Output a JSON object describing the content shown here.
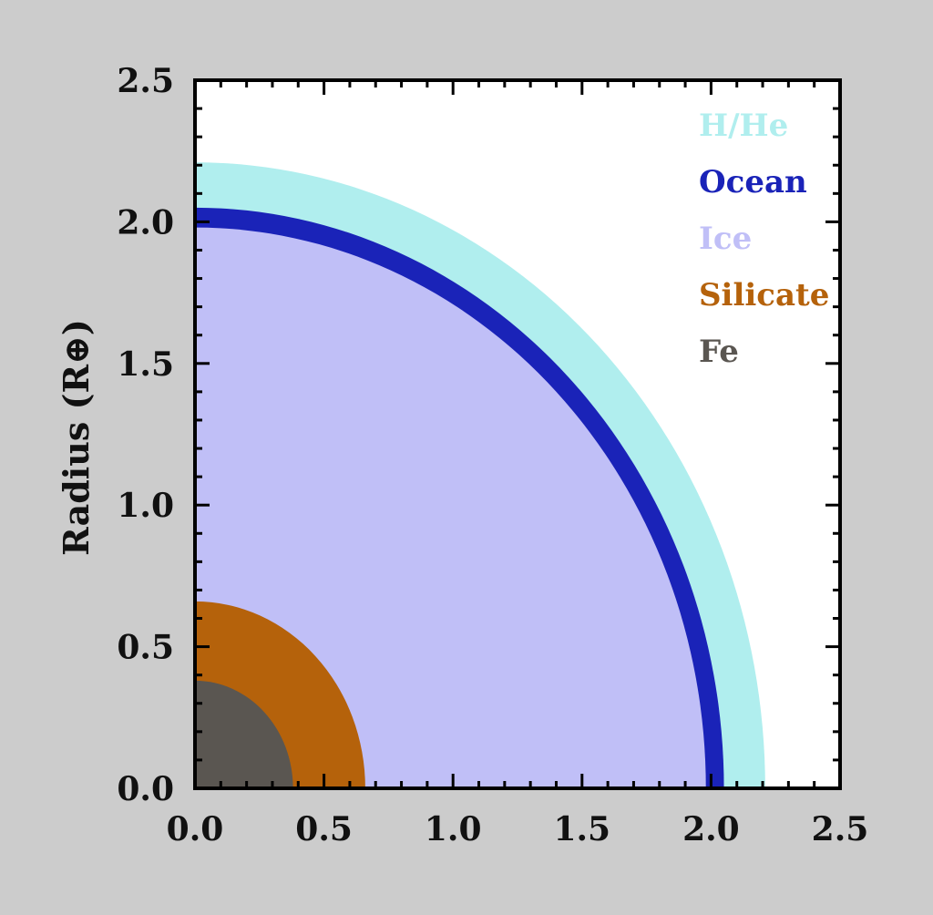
{
  "chart_data": {
    "type": "area",
    "title": "",
    "xlabel": "",
    "ylabel": "Radius (R⊕)",
    "xlim": [
      0,
      2.5
    ],
    "ylim": [
      0,
      2.5
    ],
    "xticks": [
      "0.0",
      "0.5",
      "1.0",
      "1.5",
      "2.0",
      "2.5"
    ],
    "yticks": [
      "0.0",
      "0.5",
      "1.0",
      "1.5",
      "2.0",
      "2.5"
    ],
    "grid": false,
    "legend_placement": "top-right",
    "layers": [
      {
        "name": "H/He",
        "outer_radius": 2.21,
        "color": "#b0eeee"
      },
      {
        "name": "Ocean",
        "outer_radius": 2.05,
        "color": "#1a23b8"
      },
      {
        "name": "Ice",
        "outer_radius": 1.98,
        "color": "#c0bff7"
      },
      {
        "name": "Silicate",
        "outer_radius": 0.66,
        "color": "#b5620b"
      },
      {
        "name": "Fe",
        "outer_radius": 0.38,
        "color": "#5a5651"
      }
    ]
  }
}
